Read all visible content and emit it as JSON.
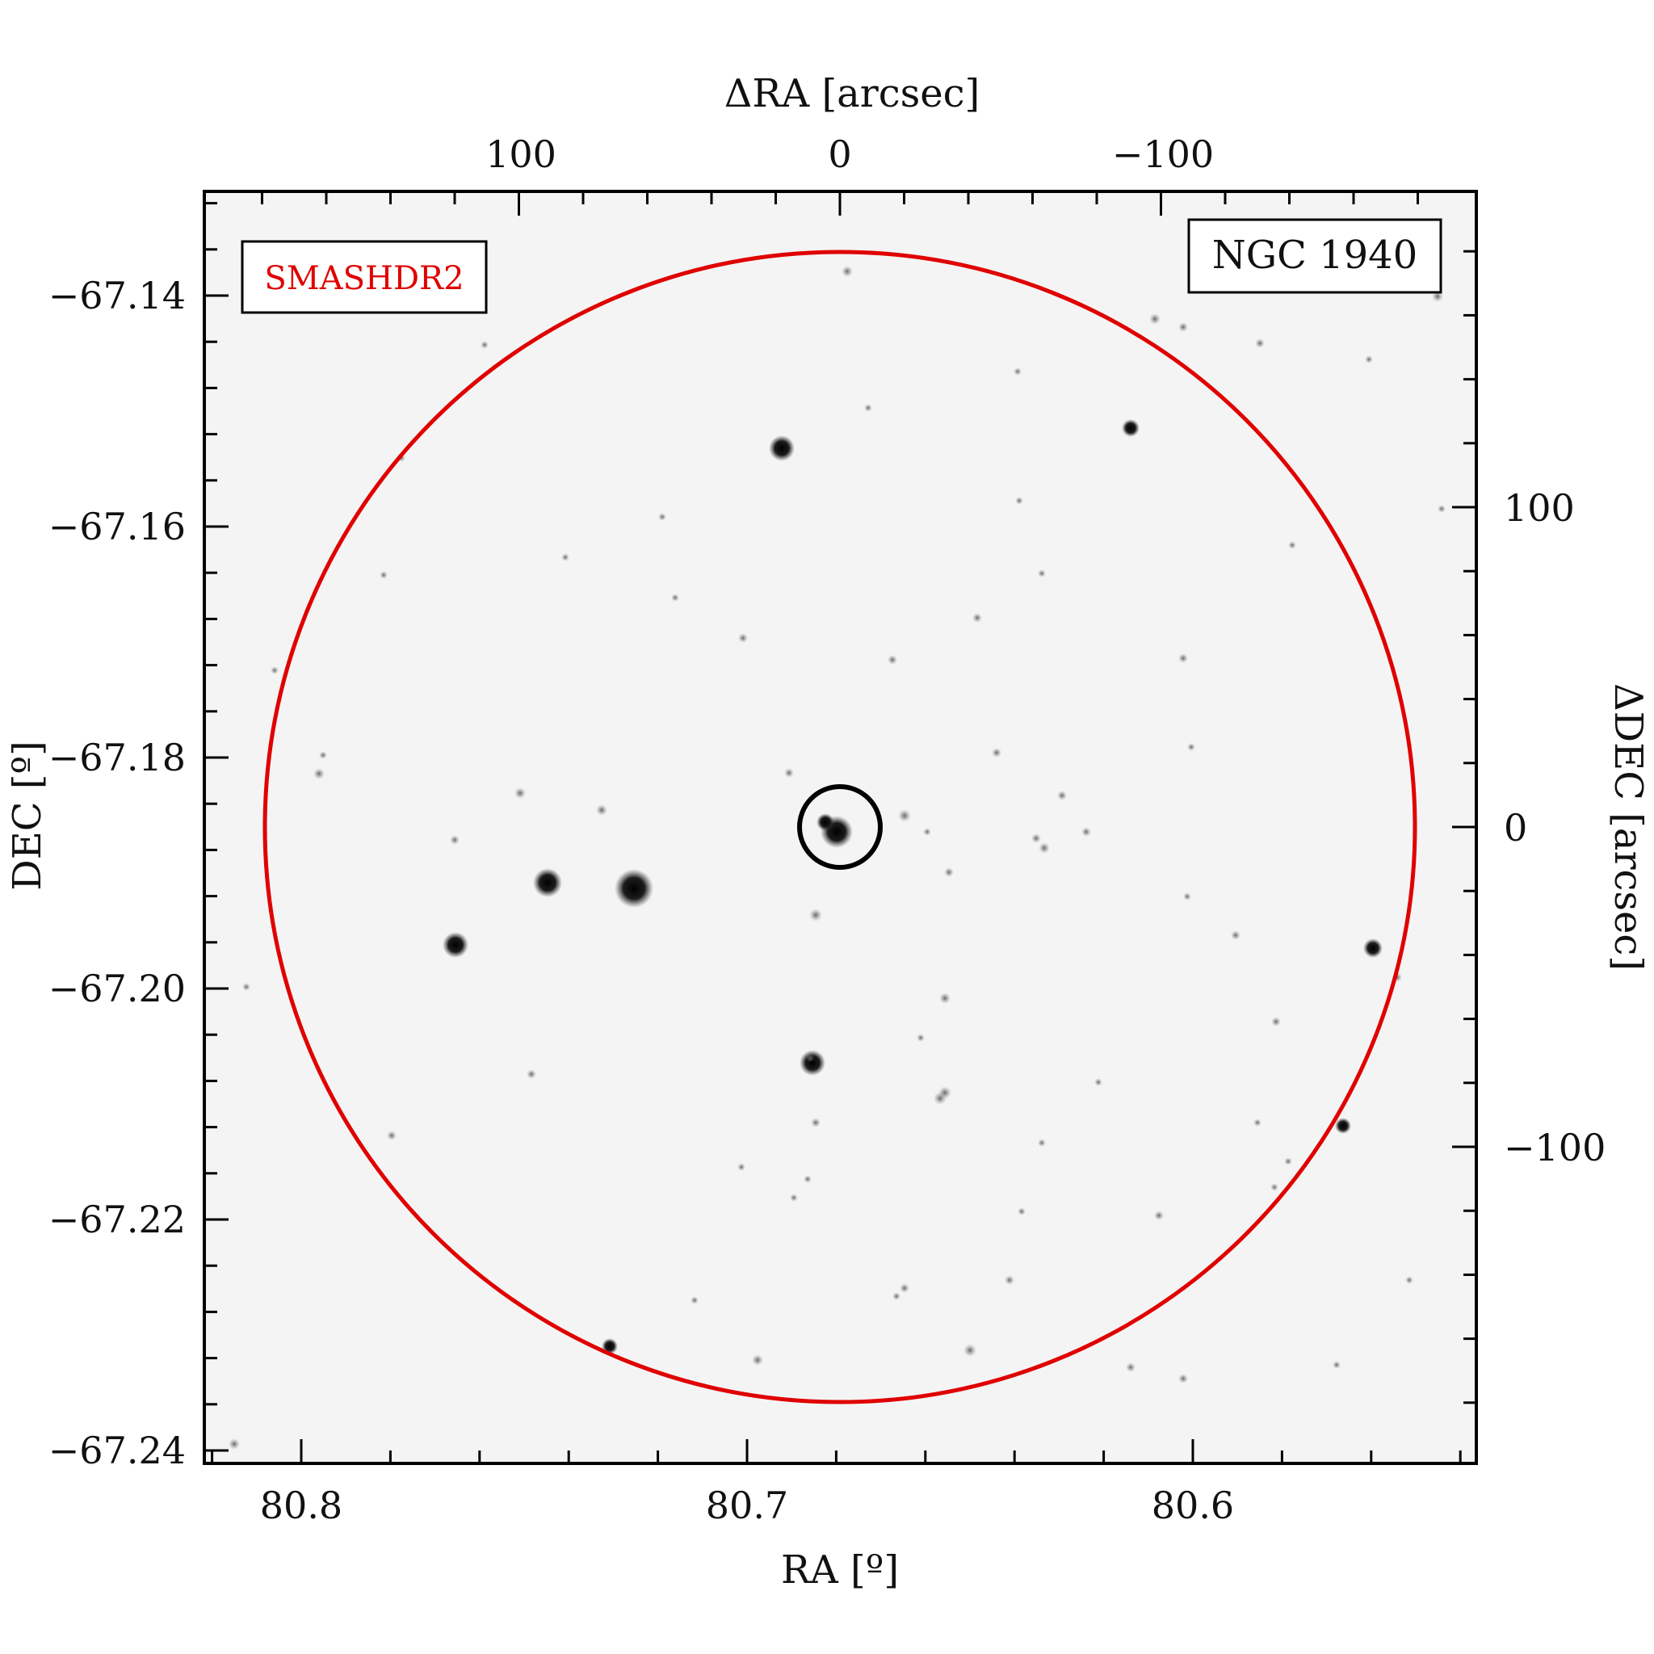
{
  "figure": {
    "survey_label": "SMASHDR2",
    "object_label": "NGC 1940",
    "x_bottom_title": "RA [º]",
    "y_left_title": "DEC [º]",
    "x_top_title": "ΔRA [arcsec]",
    "y_right_title": "ΔDEC [arcsec]",
    "x_bottom_ticks": [
      "80.8",
      "80.7",
      "80.6"
    ],
    "y_left_ticks": [
      "−67.14",
      "−67.16",
      "−67.18",
      "−67.20",
      "−67.22",
      "−67.24"
    ],
    "x_top_ticks": [
      "100",
      "0",
      "−100"
    ],
    "y_right_ticks": [
      "100",
      "0",
      "−100"
    ],
    "colors": {
      "outer_circle": "#e00000",
      "inner_circle": "#000000",
      "survey_label": "#e00000",
      "frame": "#000000",
      "sky_background": "#f4f4f4"
    }
  }
}
